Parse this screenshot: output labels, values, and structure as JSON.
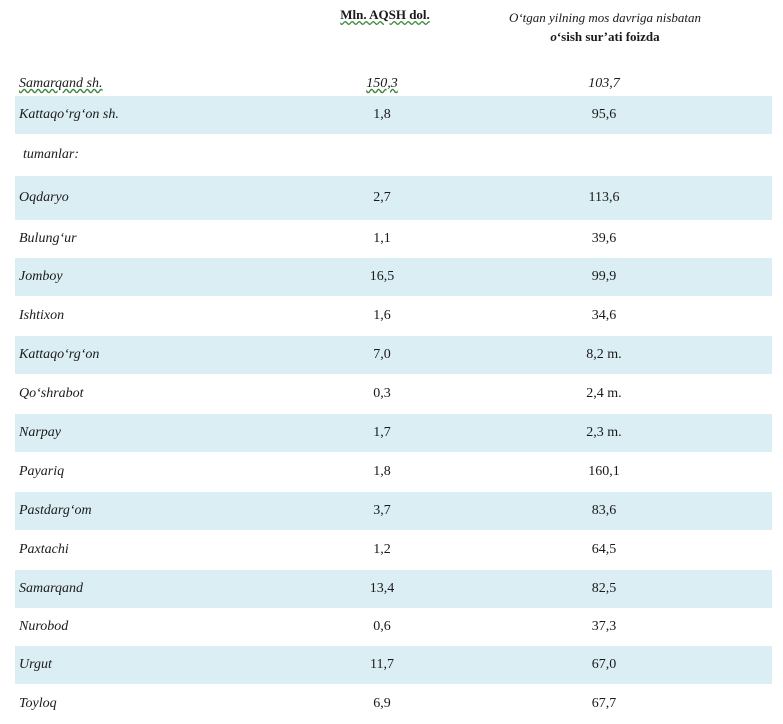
{
  "header": {
    "col1": "Mln. AQSH dol.",
    "col2_line1": "O‘tgan yilning mos davriga nisbatan",
    "col2_line2_italic": "o",
    "col2_line2_rest": "‘sish sur’ati foizda"
  },
  "rows": [
    {
      "name": "Samarqand sh.",
      "v1": "150,3",
      "v2": "103,7"
    },
    {
      "name": "Kattaqo‘rg‘on  sh.",
      "v1": "1,8",
      "v2": "95,6"
    },
    {
      "name": " tumanlar:",
      "v1": "",
      "v2": ""
    },
    {
      "name": "Oqdaryo",
      "v1": "2,7",
      "v2": "113,6"
    },
    {
      "name": "Bulung‘ur",
      "v1": "1,1",
      "v2": "39,6"
    },
    {
      "name": "Jomboy",
      "v1": "16,5",
      "v2": "99,9"
    },
    {
      "name": "Ishtixon",
      "v1": "1,6",
      "v2": "34,6"
    },
    {
      "name": "Kattaqo‘rg‘on",
      "v1": "7,0",
      "v2": "8,2 m."
    },
    {
      "name": "Qo‘shrabot",
      "v1": "0,3",
      "v2": "2,4 m."
    },
    {
      "name": "Narpay",
      "v1": "1,7",
      "v2": "2,3 m."
    },
    {
      "name": "Payariq",
      "v1": "1,8",
      "v2": "160,1"
    },
    {
      "name": "Pastdarg‘om",
      "v1": "3,7",
      "v2": "83,6"
    },
    {
      "name": "Paxtachi",
      "v1": "1,2",
      "v2": "64,5"
    },
    {
      "name": "Samarqand",
      "v1": "13,4",
      "v2": "82,5"
    },
    {
      "name": "Nurobod",
      "v1": "0,6",
      "v2": "37,3"
    },
    {
      "name": "Urgut",
      "v1": "11,7",
      "v2": "67,0"
    },
    {
      "name": "Toyloq",
      "v1": "6,9",
      "v2": "67,7"
    }
  ],
  "colors": {
    "row_shade": "#dbeef4"
  }
}
